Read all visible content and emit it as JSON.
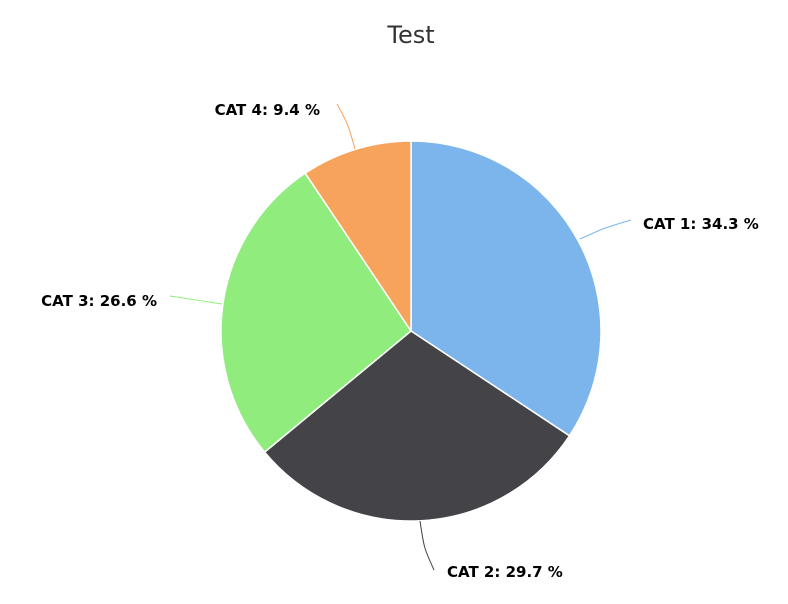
{
  "chart_data": {
    "type": "pie",
    "title": "Test",
    "slices": [
      {
        "name": "CAT 1",
        "value": 34.3,
        "label": "CAT 1: 34.3 %",
        "color": "#7cb5ec"
      },
      {
        "name": "CAT 2",
        "value": 29.7,
        "label": "CAT 2: 29.7 %",
        "color": "#434348"
      },
      {
        "name": "CAT 3",
        "value": 26.6,
        "label": "CAT 3: 26.6 %",
        "color": "#90ed7d"
      },
      {
        "name": "CAT 4",
        "value": 9.4,
        "label": "CAT 4: 9.4 %",
        "color": "#f7a35c"
      }
    ]
  }
}
